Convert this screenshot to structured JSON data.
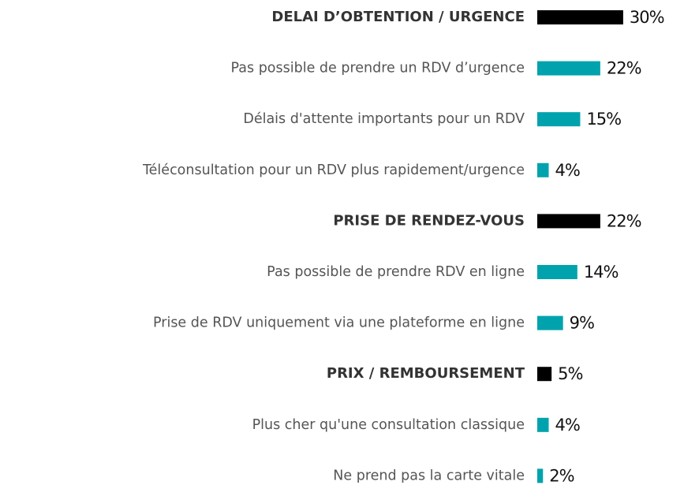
{
  "chart_data": {
    "type": "bar",
    "orientation": "horizontal",
    "categories": [
      "DELAI D’OBTENTION / URGENCE",
      "Pas possible de prendre un RDV d’urgence",
      "Délais d'attente importants pour un RDV",
      "Téléconsultation pour un RDV plus rapidement/urgence",
      "PRISE DE RENDEZ-VOUS",
      "Pas possible de prendre RDV en ligne",
      "Prise de RDV uniquement via une plateforme en ligne",
      "PRIX / REMBOURSEMENT",
      "Plus cher qu'une consultation classique",
      "Ne prend pas la carte vitale"
    ],
    "values": [
      30,
      22,
      15,
      4,
      22,
      14,
      9,
      5,
      4,
      2
    ],
    "value_labels": [
      "30%",
      "22%",
      "15%",
      "4%",
      "22%",
      "14%",
      "9%",
      "5%",
      "4%",
      "2%"
    ],
    "colors": [
      "#000000",
      "#00a3ad",
      "#00a3ad",
      "#00a3ad",
      "#000000",
      "#00a3ad",
      "#00a3ad",
      "#000000",
      "#00a3ad",
      "#00a3ad"
    ],
    "bold": [
      true,
      false,
      false,
      false,
      true,
      false,
      false,
      true,
      false,
      false
    ]
  }
}
